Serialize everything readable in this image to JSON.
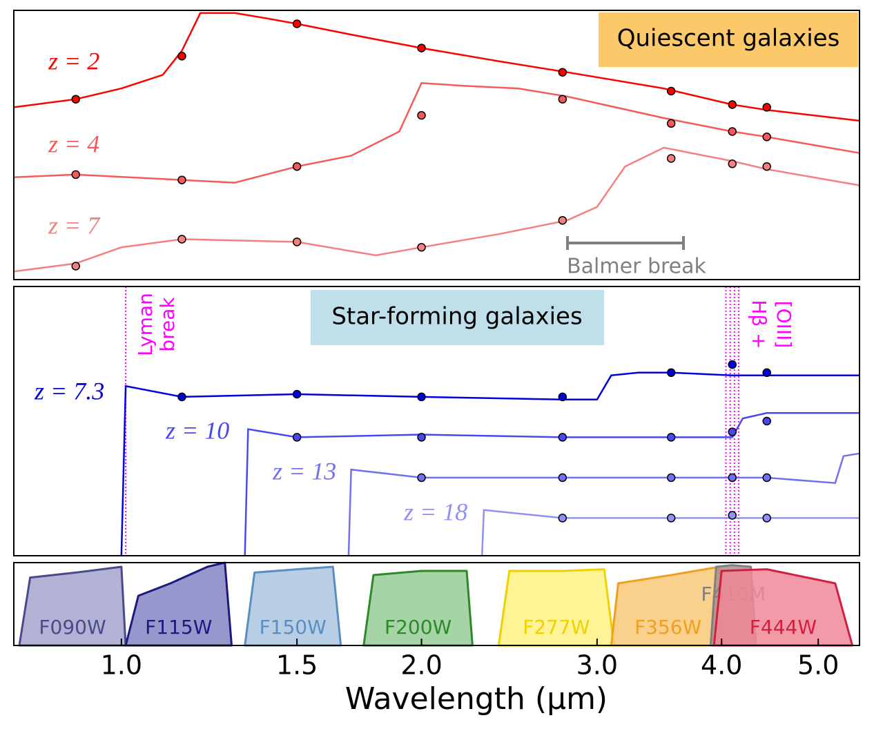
{
  "chart_data": [
    {
      "type": "line",
      "title": "Quiescent galaxies",
      "annotation": "Balmer break",
      "xscale": "log",
      "xlim": [
        0.78,
        5.5
      ],
      "ylim": [
        0,
        100
      ],
      "series": [
        {
          "name": "z = 2",
          "color": "#ff0000",
          "x": [
            0.78,
            0.9,
            1.0,
            1.1,
            1.15,
            1.2,
            1.3,
            1.4,
            1.5,
            1.7,
            2.0,
            2.4,
            2.8,
            3.5,
            4.1,
            4.44,
            5.5
          ],
          "values": [
            64,
            67,
            71,
            76,
            85,
            99,
            99,
            97,
            95,
            91,
            86,
            81,
            77,
            71,
            65,
            63,
            59
          ],
          "points": {
            "x": [
              0.9,
              1.15,
              1.5,
              2.0,
              2.77,
              3.56,
              4.1,
              4.44
            ],
            "values": [
              67,
              83,
              95,
              86,
              77,
              70,
              65,
              64
            ]
          }
        },
        {
          "name": "z = 4",
          "color": "#f45a5a",
          "x": [
            0.78,
            0.9,
            1.15,
            1.3,
            1.5,
            1.7,
            1.9,
            2.0,
            2.2,
            2.5,
            2.8,
            3.5,
            4.1,
            4.44,
            5.5
          ],
          "values": [
            38,
            39,
            37,
            36,
            42,
            46,
            55,
            73,
            72,
            71,
            68,
            60,
            55,
            53,
            47
          ],
          "points": {
            "x": [
              0.9,
              1.15,
              1.5,
              2.0,
              2.77,
              3.56,
              4.1,
              4.44
            ],
            "values": [
              39,
              37,
              42,
              61,
              67,
              58,
              55,
              53
            ]
          }
        },
        {
          "name": "z = 7",
          "color": "#f48080",
          "x": [
            0.78,
            0.9,
            1.0,
            1.15,
            1.5,
            1.8,
            2.0,
            2.4,
            2.8,
            3.0,
            3.2,
            3.5,
            4.1,
            4.44,
            5.5
          ],
          "values": [
            3,
            6,
            12,
            15,
            14,
            9,
            12,
            17,
            22,
            27,
            42,
            49,
            44,
            41,
            35
          ],
          "points": {
            "x": [
              0.9,
              1.15,
              1.5,
              2.0,
              2.77,
              3.56,
              4.1,
              4.44
            ],
            "values": [
              5,
              15,
              14,
              12,
              22,
              45,
              43,
              42
            ]
          }
        }
      ]
    },
    {
      "type": "line",
      "title": "Star-forming galaxies",
      "annotations": [
        "Lyman",
        "break",
        "Hβ +",
        "[OIII]"
      ],
      "vline_color": "#ff00ff",
      "vlines": [
        1.01,
        4.04,
        4.08,
        4.12,
        4.16
      ],
      "xscale": "log",
      "xlim": [
        0.78,
        5.5
      ],
      "ylim": [
        0,
        100
      ],
      "series": [
        {
          "name": "z = 7.3",
          "color": "#0000e0",
          "x": [
            1.0,
            1.01,
            1.15,
            1.5,
            2.0,
            2.77,
            3.0,
            3.1,
            3.3,
            3.56,
            4.1,
            4.44,
            5.5
          ],
          "values": [
            0,
            63,
            59,
            60,
            59,
            58,
            58,
            67,
            68,
            68,
            67,
            67,
            67
          ],
          "points": {
            "x": [
              1.15,
              1.5,
              2.0,
              2.77,
              3.56,
              4.1,
              4.44
            ],
            "values": [
              59,
              60,
              59,
              59,
              68,
              71,
              68
            ]
          }
        },
        {
          "name": "z = 10",
          "color": "#4848f0",
          "x": [
            1.33,
            1.34,
            1.5,
            2.0,
            2.77,
            3.56,
            4.1,
            4.2,
            4.44,
            5.5
          ],
          "values": [
            0,
            47,
            44,
            45,
            44,
            44,
            44,
            51,
            53,
            53
          ],
          "points": {
            "x": [
              1.5,
              2.0,
              2.77,
              3.56,
              4.1,
              4.44
            ],
            "values": [
              44,
              44,
              44,
              44,
              46,
              50
            ]
          }
        },
        {
          "name": "z = 13",
          "color": "#7070f0",
          "x": [
            1.69,
            1.7,
            2.0,
            2.77,
            3.56,
            4.44,
            5.2,
            5.3,
            5.5
          ],
          "values": [
            0,
            32,
            29,
            29,
            29,
            29,
            27,
            37,
            38
          ],
          "points": {
            "x": [
              2.0,
              2.77,
              3.56,
              4.1,
              4.44
            ],
            "values": [
              29,
              29,
              29,
              29,
              29
            ]
          }
        },
        {
          "name": "z = 18",
          "color": "#9090f5",
          "x": [
            2.3,
            2.31,
            2.77,
            3.56,
            4.44,
            5.5
          ],
          "values": [
            0,
            17,
            14,
            14,
            14,
            14
          ],
          "points": {
            "x": [
              2.77,
              3.56,
              4.1,
              4.44
            ],
            "values": [
              14,
              14,
              15,
              14
            ]
          }
        }
      ]
    },
    {
      "type": "area",
      "xscale": "log",
      "xlim": [
        0.78,
        5.5
      ],
      "ylim": [
        0,
        100
      ],
      "xlabel": "Wavelength (μm)",
      "xticks": [
        {
          "value": 1,
          "label": "1.0"
        },
        {
          "value": 1.5,
          "label": "1.5"
        },
        {
          "value": 2,
          "label": "2.0"
        },
        {
          "value": 3,
          "label": "3.0"
        },
        {
          "value": 4,
          "label": "4.0"
        },
        {
          "value": 5,
          "label": "5.0"
        }
      ],
      "series": [
        {
          "name": "F090W",
          "color": "#4a4a8a",
          "fill": "#a4a4cc",
          "x": [
            0.79,
            0.81,
            0.9,
            1.0,
            1.01
          ],
          "values": [
            0,
            82,
            88,
            95,
            0
          ]
        },
        {
          "name": "F115W",
          "color": "#1a1a80",
          "fill": "#8585c4",
          "x": [
            1.01,
            1.04,
            1.12,
            1.22,
            1.27,
            1.29
          ],
          "values": [
            0,
            60,
            75,
            95,
            100,
            0
          ]
        },
        {
          "name": "F150W",
          "color": "#5a8ec0",
          "fill": "#aac6e0",
          "x": [
            1.33,
            1.36,
            1.5,
            1.63,
            1.66
          ],
          "values": [
            0,
            88,
            92,
            95,
            0
          ]
        },
        {
          "name": "F200W",
          "color": "#2a8a2a",
          "fill": "#96cc96",
          "x": [
            1.75,
            1.79,
            2.0,
            2.22,
            2.25
          ],
          "values": [
            0,
            85,
            90,
            90,
            0
          ]
        },
        {
          "name": "F277W",
          "color": "#f0d000",
          "fill": "#fff282",
          "x": [
            2.39,
            2.45,
            2.77,
            3.05,
            3.12
          ],
          "values": [
            0,
            90,
            90,
            92,
            0
          ]
        },
        {
          "name": "F356W",
          "color": "#f0a020",
          "fill": "#f8c878",
          "x": [
            3.1,
            3.15,
            3.56,
            3.98,
            4.03
          ],
          "values": [
            0,
            75,
            85,
            95,
            0
          ]
        },
        {
          "name": "F410M",
          "color": "#808080",
          "fill": "#b08c8c",
          "x": [
            3.9,
            3.95,
            4.1,
            4.28,
            4.33
          ],
          "values": [
            0,
            95,
            97,
            95,
            0
          ]
        },
        {
          "name": "F444W",
          "color": "#d02040",
          "fill": "#f08898",
          "x": [
            3.93,
            4.0,
            4.44,
            5.2,
            5.41
          ],
          "values": [
            0,
            90,
            92,
            75,
            0
          ]
        }
      ]
    }
  ]
}
